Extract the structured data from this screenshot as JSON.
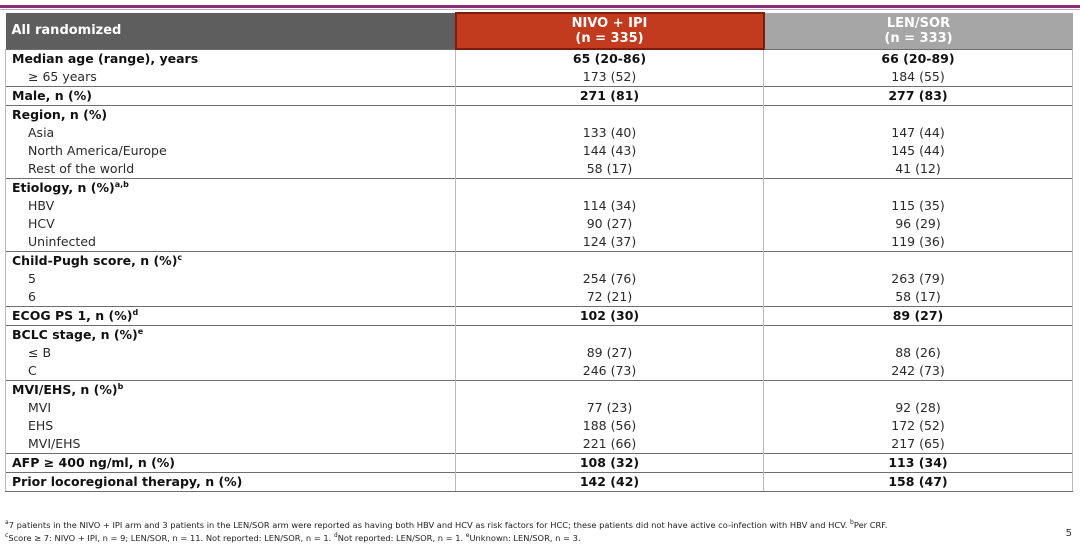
{
  "header": {
    "label": "All randomized",
    "arm1_name": "NIVO + IPI",
    "arm1_n": "(n = 335)",
    "arm2_name": "LEN/SOR",
    "arm2_n": "(n = 333)"
  },
  "rows": [
    {
      "label": "Median age (range), years",
      "sup": "",
      "v1": "65 (20-86)",
      "v2": "66 (20-89)",
      "kind": "cat"
    },
    {
      "label": "≥ 65 years",
      "sup": "",
      "v1": "173 (52)",
      "v2": "184 (55)",
      "kind": "sub"
    },
    {
      "label": "Male, n (%)",
      "sup": "",
      "v1": "271 (81)",
      "v2": "277 (83)",
      "kind": "cat"
    },
    {
      "label": "Region, n (%)",
      "sup": "",
      "v1": "",
      "v2": "",
      "kind": "cat"
    },
    {
      "label": "Asia",
      "sup": "",
      "v1": "133 (40)",
      "v2": "147 (44)",
      "kind": "sub"
    },
    {
      "label": "North America/Europe",
      "sup": "",
      "v1": "144 (43)",
      "v2": "145 (44)",
      "kind": "sub"
    },
    {
      "label": "Rest of the world",
      "sup": "",
      "v1": "58 (17)",
      "v2": "41 (12)",
      "kind": "sub"
    },
    {
      "label": "Etiology, n (%)",
      "sup": "a,b",
      "v1": "",
      "v2": "",
      "kind": "cat"
    },
    {
      "label": "HBV",
      "sup": "",
      "v1": "114 (34)",
      "v2": "115 (35)",
      "kind": "sub"
    },
    {
      "label": "HCV",
      "sup": "",
      "v1": "90 (27)",
      "v2": "96 (29)",
      "kind": "sub"
    },
    {
      "label": "Uninfected",
      "sup": "",
      "v1": "124 (37)",
      "v2": "119 (36)",
      "kind": "sub"
    },
    {
      "label": "Child-Pugh score, n (%)",
      "sup": "c",
      "v1": "",
      "v2": "",
      "kind": "cat"
    },
    {
      "label": "5",
      "sup": "",
      "v1": "254 (76)",
      "v2": "263 (79)",
      "kind": "sub"
    },
    {
      "label": "6",
      "sup": "",
      "v1": "72 (21)",
      "v2": "58 (17)",
      "kind": "sub"
    },
    {
      "label": "ECOG PS 1, n (%)",
      "sup": "d",
      "v1": "102 (30)",
      "v2": "89 (27)",
      "kind": "cat"
    },
    {
      "label": "BCLC stage, n (%)",
      "sup": "e",
      "v1": "",
      "v2": "",
      "kind": "cat"
    },
    {
      "label": "≤ B",
      "sup": "",
      "v1": "89 (27)",
      "v2": "88 (26)",
      "kind": "sub"
    },
    {
      "label": "C",
      "sup": "",
      "v1": "246 (73)",
      "v2": "242 (73)",
      "kind": "sub"
    },
    {
      "label": "MVI/EHS, n (%)",
      "sup": "b",
      "v1": "",
      "v2": "",
      "kind": "cat"
    },
    {
      "label": "MVI",
      "sup": "",
      "v1": "77 (23)",
      "v2": "92 (28)",
      "kind": "sub"
    },
    {
      "label": "EHS",
      "sup": "",
      "v1": "188 (56)",
      "v2": "172 (52)",
      "kind": "sub"
    },
    {
      "label": "MVI/EHS",
      "sup": "",
      "v1": "221 (66)",
      "v2": "217 (65)",
      "kind": "sub"
    },
    {
      "label": "AFP ≥ 400 ng/ml, n (%)",
      "sup": "",
      "v1": "108 (32)",
      "v2": "113 (34)",
      "kind": "cat"
    },
    {
      "label": "Prior locoregional therapy, n (%)",
      "sup": "",
      "v1": "142 (42)",
      "v2": "158 (47)",
      "kind": "cat"
    }
  ],
  "footnotes": {
    "line1_sup": "a",
    "line1_text": "7 patients in the NIVO + IPI arm and 3 patients in the LEN/SOR arm were reported as having both HBV and HCV as risk factors for HCC; these patients did not have active co-infection with HBV and HCV. ",
    "line1_sup2": "b",
    "line1_tail": "Per CRF.",
    "line2_sup": "c",
    "line2_text": "Score ≥ 7: NIVO + IPI, n = 9; LEN/SOR, n = 11. Not reported: LEN/SOR, n = 1. ",
    "line2_sup2": "d",
    "line2_text2": "Not reported: LEN/SOR, n = 1. ",
    "line2_sup3": "e",
    "line2_text3": "Unknown: LEN/SOR, n = 3."
  },
  "page_number": "5"
}
